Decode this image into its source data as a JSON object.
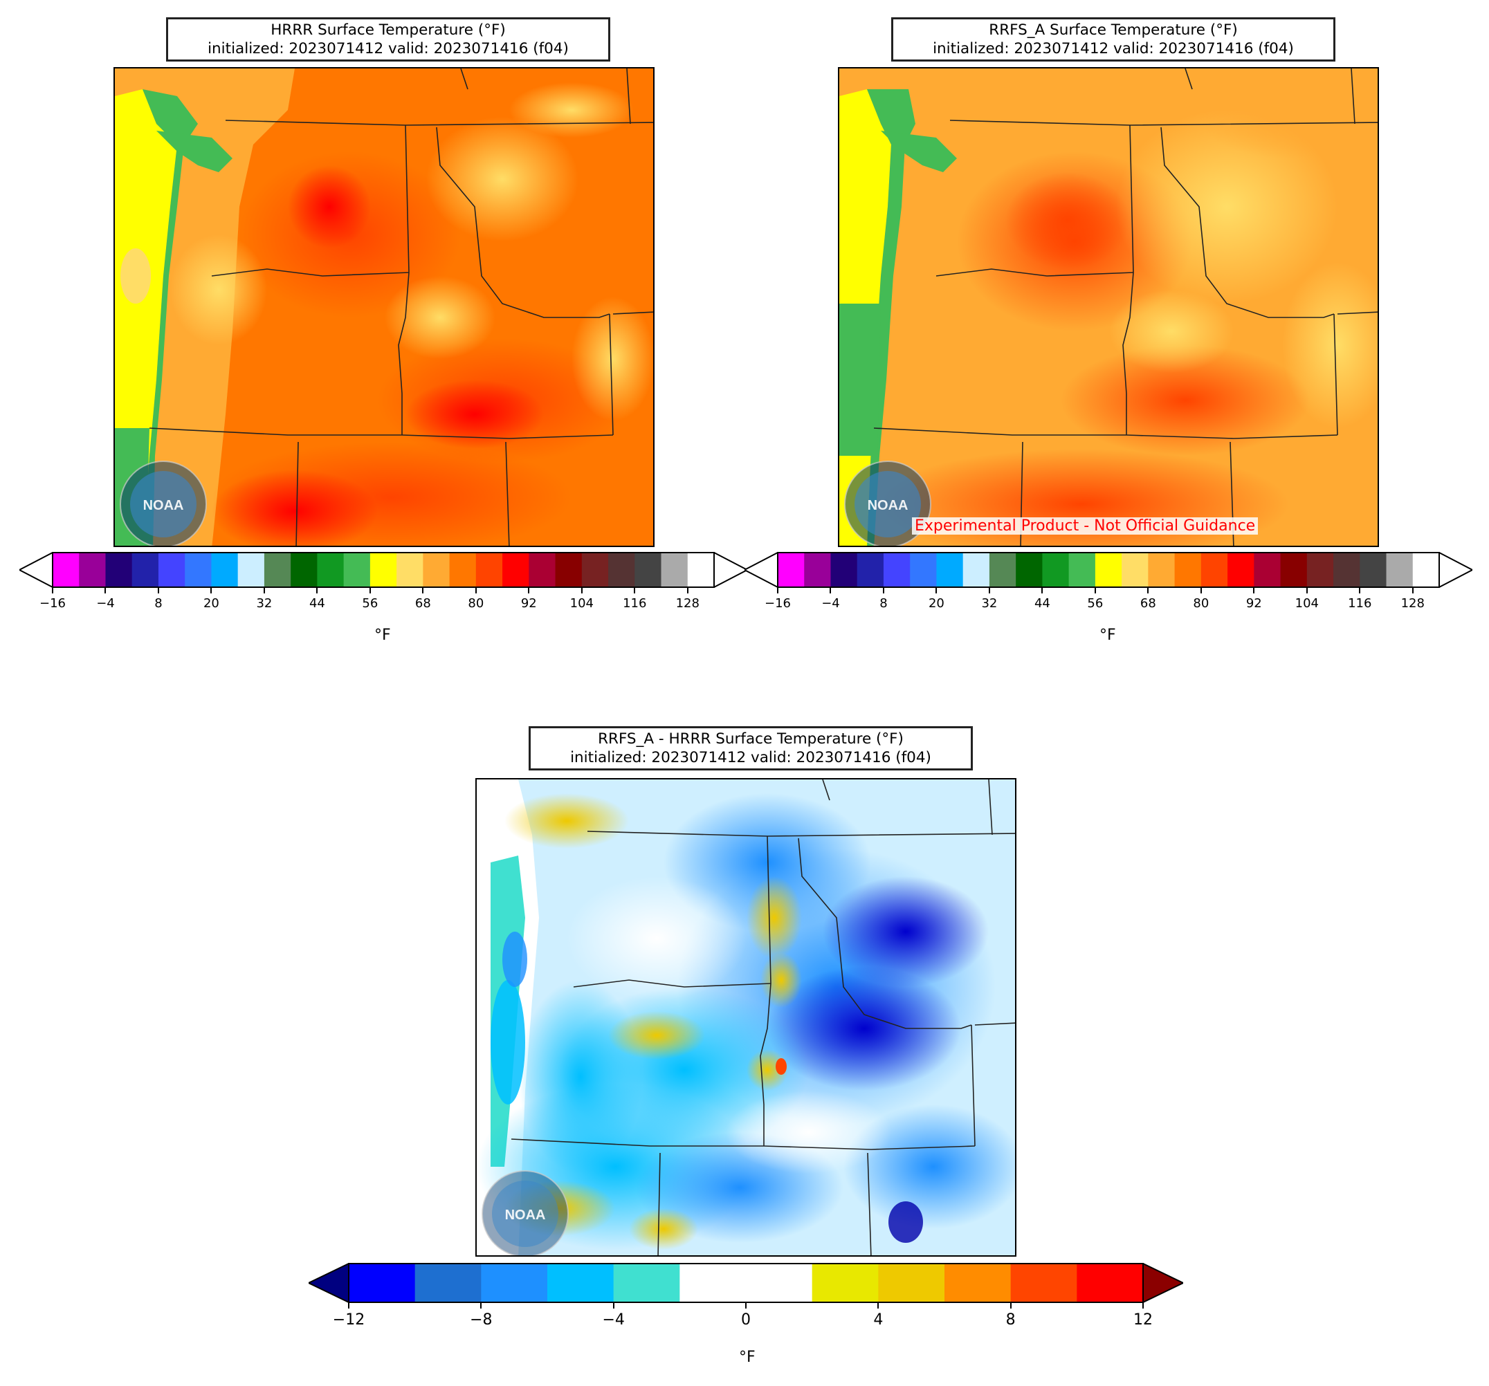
{
  "panels": [
    {
      "id": "hrrr",
      "title_line1": "HRRR Surface Temperature (°F)",
      "title_line2": "initialized: 2023071412 valid: 2023071416 (f04)",
      "logo_label": "NOAA"
    },
    {
      "id": "rrfs",
      "title_line1": "RRFS_A Surface Temperature (°F)",
      "title_line2": "initialized: 2023071412 valid: 2023071416 (f04)",
      "logo_label": "NOAA",
      "watermark": "Experimental Product - Not Official Guidance"
    },
    {
      "id": "diff",
      "title_line1": "RRFS_A - HRRR Surface Temperature (°F)",
      "title_line2": "initialized: 2023071412 valid: 2023071416 (f04)",
      "logo_label": "NOAA"
    }
  ],
  "temp_colorbar": {
    "unit_label": "°F",
    "ticks": [
      "−16",
      "−4",
      "8",
      "20",
      "32",
      "44",
      "56",
      "68",
      "80",
      "92",
      "104",
      "116",
      "128"
    ],
    "tick_values": [
      -16,
      -4,
      8,
      20,
      32,
      44,
      56,
      68,
      80,
      92,
      104,
      116,
      128
    ],
    "range": [
      -16,
      134
    ],
    "step": 6,
    "extend": "both",
    "colors": [
      "#ff00ff",
      "#990099",
      "#220077",
      "#2222aa",
      "#4444ff",
      "#3377ff",
      "#00aaff",
      "#cceeff",
      "#558855",
      "#006600",
      "#119922",
      "#44bb55",
      "#ffff00",
      "#ffdd66",
      "#ffaa33",
      "#ff7700",
      "#ff4400",
      "#ff0000",
      "#aa0033",
      "#880000",
      "#772222",
      "#553333",
      "#444444",
      "#aaaaaa",
      "#ffffff"
    ],
    "under_color": "#ffffff",
    "over_color": "#ffffff"
  },
  "diff_colorbar": {
    "unit_label": "°F",
    "ticks": [
      "−12",
      "−8",
      "−4",
      "0",
      "4",
      "8",
      "12"
    ],
    "tick_values": [
      -12,
      -8,
      -4,
      0,
      4,
      8,
      12
    ],
    "range": [
      -12,
      12
    ],
    "step": 2,
    "extend": "both",
    "colors": [
      "#0000ff",
      "#1e6fd0",
      "#1e90ff",
      "#00bfff",
      "#40e0d0",
      "#ffffff",
      "#ffffff",
      "#e8e800",
      "#eec900",
      "#ff8c00",
      "#ff4500",
      "#ff0000"
    ],
    "under_color": "#000080",
    "over_color": "#8b0000"
  }
}
